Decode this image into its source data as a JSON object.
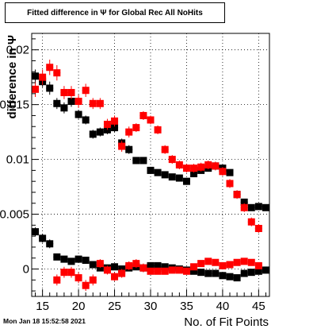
{
  "timestamp": "Mon Jan 18 15:52:58 2021",
  "chart_data": {
    "type": "scatter",
    "title": "Fitted difference in  Ψ  for Global Rec All NoHits",
    "xlabel": "No. of Fit Points",
    "ylabel": "difference in Ψ",
    "xlim": [
      13.5,
      46.5
    ],
    "ylim": [
      -0.0025,
      0.0215
    ],
    "x_ticks": [
      15,
      20,
      25,
      30,
      35,
      40,
      45
    ],
    "x_tick_labels": [
      "15",
      "20",
      "25",
      "30",
      "35",
      "40",
      "45"
    ],
    "y_ticks": [
      0,
      0.005,
      0.01,
      0.015,
      0.02
    ],
    "y_tick_labels": [
      "0",
      "0.005",
      "0.01",
      "0.015",
      "0.02"
    ],
    "grid": true,
    "series": [
      {
        "color": "#000000",
        "points": [
          {
            "x": 14,
            "y": 0.0176,
            "yerr": 0.0006
          },
          {
            "x": 15,
            "y": 0.0171,
            "yerr": 0.0005
          },
          {
            "x": 16,
            "y": 0.0165,
            "yerr": 0.0006
          },
          {
            "x": 17,
            "y": 0.0151,
            "yerr": 0.0005
          },
          {
            "x": 18,
            "y": 0.0147,
            "yerr": 0.0005
          },
          {
            "x": 19,
            "y": 0.0153,
            "yerr": 0.0005
          },
          {
            "x": 20,
            "y": 0.0141,
            "yerr": 0.0004
          },
          {
            "x": 21,
            "y": 0.0136,
            "yerr": 0.0004
          },
          {
            "x": 22,
            "y": 0.0123,
            "yerr": 0.0004
          },
          {
            "x": 23,
            "y": 0.0125,
            "yerr": 0.0004
          },
          {
            "x": 24,
            "y": 0.0127,
            "yerr": 0.0004
          },
          {
            "x": 25,
            "y": 0.0129,
            "yerr": 0.0004
          },
          {
            "x": 26,
            "y": 0.0115,
            "yerr": 0.0004
          },
          {
            "x": 27,
            "y": 0.0109,
            "yerr": 0.0004
          },
          {
            "x": 28,
            "y": 0.0099,
            "yerr": 0.0003
          },
          {
            "x": 29,
            "y": 0.0099,
            "yerr": 0.0003
          },
          {
            "x": 30,
            "y": 0.009,
            "yerr": 0.0003
          },
          {
            "x": 31,
            "y": 0.0088,
            "yerr": 0.0003
          },
          {
            "x": 32,
            "y": 0.0086,
            "yerr": 0.0003
          },
          {
            "x": 33,
            "y": 0.0084,
            "yerr": 0.0003
          },
          {
            "x": 34,
            "y": 0.0083,
            "yerr": 0.0003
          },
          {
            "x": 35,
            "y": 0.008,
            "yerr": 0.0003
          },
          {
            "x": 36,
            "y": 0.0087,
            "yerr": 0.0003
          },
          {
            "x": 37,
            "y": 0.009,
            "yerr": 0.0003
          },
          {
            "x": 38,
            "y": 0.0092,
            "yerr": 0.0003
          },
          {
            "x": 39,
            "y": 0.0094,
            "yerr": 0.0003
          },
          {
            "x": 40,
            "y": 0.0092,
            "yerr": 0.0003
          },
          {
            "x": 41,
            "y": 0.0088,
            "yerr": 0.0003
          },
          {
            "x": 42,
            "y": 0.0068,
            "yerr": 0.0003
          },
          {
            "x": 43,
            "y": 0.0061,
            "yerr": 0.0003
          },
          {
            "x": 44,
            "y": 0.0056,
            "yerr": 0.0003
          },
          {
            "x": 45,
            "y": 0.0057,
            "yerr": 0.0003
          },
          {
            "x": 46,
            "y": 0.0056,
            "yerr": 0.0003
          }
        ]
      },
      {
        "color": "#ff0000",
        "points": [
          {
            "x": 14,
            "y": 0.0164,
            "yerr": 0.0007
          },
          {
            "x": 15,
            "y": 0.0175,
            "yerr": 0.0007
          },
          {
            "x": 16,
            "y": 0.0184,
            "yerr": 0.0007
          },
          {
            "x": 17,
            "y": 0.0179,
            "yerr": 0.0007
          },
          {
            "x": 18,
            "y": 0.0161,
            "yerr": 0.0006
          },
          {
            "x": 19,
            "y": 0.0161,
            "yerr": 0.0006
          },
          {
            "x": 20,
            "y": 0.0153,
            "yerr": 0.0006
          },
          {
            "x": 21,
            "y": 0.0163,
            "yerr": 0.0006
          },
          {
            "x": 22,
            "y": 0.0151,
            "yerr": 0.0005
          },
          {
            "x": 23,
            "y": 0.0151,
            "yerr": 0.0005
          },
          {
            "x": 24,
            "y": 0.0132,
            "yerr": 0.0005
          },
          {
            "x": 25,
            "y": 0.0135,
            "yerr": 0.0005
          },
          {
            "x": 26,
            "y": 0.0112,
            "yerr": 0.0005
          },
          {
            "x": 27,
            "y": 0.0125,
            "yerr": 0.0005
          },
          {
            "x": 28,
            "y": 0.0129,
            "yerr": 0.0004
          },
          {
            "x": 29,
            "y": 0.014,
            "yerr": 0.0004
          },
          {
            "x": 30,
            "y": 0.0136,
            "yerr": 0.0004
          },
          {
            "x": 31,
            "y": 0.0127,
            "yerr": 0.0004
          },
          {
            "x": 32,
            "y": 0.0109,
            "yerr": 0.0004
          },
          {
            "x": 33,
            "y": 0.01,
            "yerr": 0.0004
          },
          {
            "x": 34,
            "y": 0.0095,
            "yerr": 0.0004
          },
          {
            "x": 35,
            "y": 0.0092,
            "yerr": 0.0004
          },
          {
            "x": 36,
            "y": 0.0092,
            "yerr": 0.0004
          },
          {
            "x": 37,
            "y": 0.0093,
            "yerr": 0.0004
          },
          {
            "x": 38,
            "y": 0.0095,
            "yerr": 0.0004
          },
          {
            "x": 39,
            "y": 0.0094,
            "yerr": 0.0004
          },
          {
            "x": 40,
            "y": 0.0089,
            "yerr": 0.0004
          },
          {
            "x": 41,
            "y": 0.0078,
            "yerr": 0.0004
          },
          {
            "x": 42,
            "y": 0.0068,
            "yerr": 0.0004
          },
          {
            "x": 43,
            "y": 0.0056,
            "yerr": 0.0004
          },
          {
            "x": 44,
            "y": 0.0043,
            "yerr": 0.0004
          },
          {
            "x": 45,
            "y": 0.0037,
            "yerr": 0.0004
          }
        ]
      },
      {
        "color": "#000000",
        "points": [
          {
            "x": 14,
            "y": 0.0034,
            "yerr": 0.0004
          },
          {
            "x": 15,
            "y": 0.0028,
            "yerr": 0.0004
          },
          {
            "x": 16,
            "y": 0.0023,
            "yerr": 0.0004
          },
          {
            "x": 17,
            "y": 0.0011,
            "yerr": 0.0003
          },
          {
            "x": 18,
            "y": 0.0009,
            "yerr": 0.0003
          },
          {
            "x": 19,
            "y": 0.0007,
            "yerr": 0.0003
          },
          {
            "x": 20,
            "y": 0.0009,
            "yerr": 0.0003
          },
          {
            "x": 21,
            "y": 0.0008,
            "yerr": 0.0003
          },
          {
            "x": 22,
            "y": 0.0004,
            "yerr": 0.0003
          },
          {
            "x": 23,
            "y": 0.0001,
            "yerr": 0.0003
          },
          {
            "x": 24,
            "y": 0.0001,
            "yerr": 0.0003
          },
          {
            "x": 25,
            "y": 0.0002,
            "yerr": 0.0003
          },
          {
            "x": 26,
            "y": 0.0,
            "yerr": 0.0003
          },
          {
            "x": 27,
            "y": 0.0001,
            "yerr": 0.0003
          },
          {
            "x": 28,
            "y": 0.0002,
            "yerr": 0.0002
          },
          {
            "x": 29,
            "y": 0.0001,
            "yerr": 0.0002
          },
          {
            "x": 30,
            "y": 0.0003,
            "yerr": 0.0002
          },
          {
            "x": 31,
            "y": 0.0003,
            "yerr": 0.0002
          },
          {
            "x": 32,
            "y": 0.0002,
            "yerr": 0.0002
          },
          {
            "x": 33,
            "y": 0.0001,
            "yerr": 0.0002
          },
          {
            "x": 34,
            "y": 0.0,
            "yerr": 0.0002
          },
          {
            "x": 35,
            "y": -0.0001,
            "yerr": 0.0002
          },
          {
            "x": 36,
            "y": -0.0002,
            "yerr": 0.0002
          },
          {
            "x": 37,
            "y": -0.0003,
            "yerr": 0.0002
          },
          {
            "x": 38,
            "y": -0.0004,
            "yerr": 0.0002
          },
          {
            "x": 39,
            "y": -0.0004,
            "yerr": 0.0002
          },
          {
            "x": 40,
            "y": -0.0006,
            "yerr": 0.0002
          },
          {
            "x": 41,
            "y": -0.0007,
            "yerr": 0.0002
          },
          {
            "x": 42,
            "y": -0.0008,
            "yerr": 0.0002
          },
          {
            "x": 43,
            "y": -0.0004,
            "yerr": 0.0002
          },
          {
            "x": 44,
            "y": -0.0003,
            "yerr": 0.0002
          },
          {
            "x": 45,
            "y": -0.0002,
            "yerr": 0.0002
          },
          {
            "x": 46,
            "y": -0.0001,
            "yerr": 0.0002
          }
        ]
      },
      {
        "color": "#ff0000",
        "points": [
          {
            "x": 17,
            "y": -0.001,
            "yerr": 0.0005
          },
          {
            "x": 18,
            "y": -0.0003,
            "yerr": 0.0005
          },
          {
            "x": 19,
            "y": -0.0003,
            "yerr": 0.0005
          },
          {
            "x": 20,
            "y": -0.0008,
            "yerr": 0.0005
          },
          {
            "x": 21,
            "y": -0.0015,
            "yerr": 0.0005
          },
          {
            "x": 22,
            "y": -0.001,
            "yerr": 0.0005
          },
          {
            "x": 23,
            "y": 0.0005,
            "yerr": 0.0004
          },
          {
            "x": 24,
            "y": -0.0001,
            "yerr": 0.0004
          },
          {
            "x": 25,
            "y": -0.0007,
            "yerr": 0.0004
          },
          {
            "x": 26,
            "y": -0.0004,
            "yerr": 0.0004
          },
          {
            "x": 27,
            "y": 0.0003,
            "yerr": 0.0004
          },
          {
            "x": 28,
            "y": 0.0005,
            "yerr": 0.0004
          },
          {
            "x": 29,
            "y": 0.0001,
            "yerr": 0.0004
          },
          {
            "x": 30,
            "y": -0.0002,
            "yerr": 0.0003
          },
          {
            "x": 31,
            "y": -0.0002,
            "yerr": 0.0003
          },
          {
            "x": 32,
            "y": -0.0002,
            "yerr": 0.0003
          },
          {
            "x": 33,
            "y": -0.0001,
            "yerr": 0.0003
          },
          {
            "x": 34,
            "y": -0.0001,
            "yerr": 0.0003
          },
          {
            "x": 35,
            "y": -0.0002,
            "yerr": 0.0003
          },
          {
            "x": 36,
            "y": 0.0002,
            "yerr": 0.0003
          },
          {
            "x": 37,
            "y": 0.0005,
            "yerr": 0.0003
          },
          {
            "x": 38,
            "y": 0.0007,
            "yerr": 0.0003
          },
          {
            "x": 39,
            "y": 0.0006,
            "yerr": 0.0003
          },
          {
            "x": 40,
            "y": 0.0003,
            "yerr": 0.0003
          },
          {
            "x": 41,
            "y": 0.0004,
            "yerr": 0.0003
          },
          {
            "x": 42,
            "y": 0.0006,
            "yerr": 0.0003
          },
          {
            "x": 43,
            "y": 0.0007,
            "yerr": 0.0003
          },
          {
            "x": 44,
            "y": 0.0006,
            "yerr": 0.0003
          },
          {
            "x": 45,
            "y": 0.0003,
            "yerr": 0.0003
          }
        ]
      }
    ]
  }
}
